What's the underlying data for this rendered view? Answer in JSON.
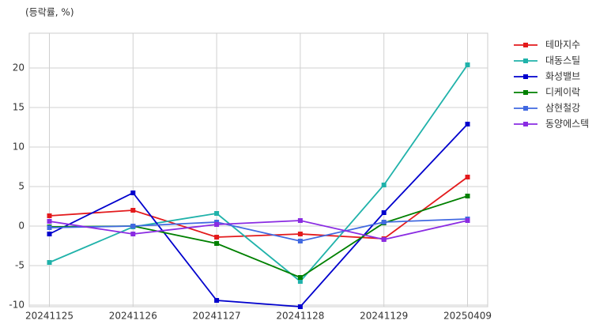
{
  "chart_data": {
    "type": "line",
    "y_label": "(등락률, %)",
    "categories": [
      "20241125",
      "20241126",
      "20241127",
      "20241128",
      "20241129",
      "20250409"
    ],
    "series": [
      {
        "name": "테마지수",
        "color": "#e31a1c",
        "values": [
          1.3,
          2.0,
          -1.4,
          -1.0,
          -1.6,
          6.2
        ]
      },
      {
        "name": "대동스틸",
        "color": "#20b2aa",
        "values": [
          -4.6,
          -0.1,
          1.6,
          -7.0,
          5.2,
          20.4
        ]
      },
      {
        "name": "화성밸브",
        "color": "#0000cd",
        "values": [
          -1.0,
          4.2,
          -9.4,
          -10.2,
          1.7,
          12.9
        ]
      },
      {
        "name": "디케이락",
        "color": "#008000",
        "values": [
          -0.1,
          0.0,
          -2.2,
          -6.5,
          0.4,
          3.8
        ]
      },
      {
        "name": "삼현철강",
        "color": "#4169e1",
        "values": [
          -0.2,
          0.0,
          0.5,
          -1.9,
          0.5,
          0.9
        ]
      },
      {
        "name": "동양에스텍",
        "color": "#8a2be2",
        "values": [
          0.6,
          -1.0,
          0.2,
          0.7,
          -1.7,
          0.7
        ]
      }
    ],
    "ylim": [
      -10.2,
      24.4
    ],
    "yticks": [
      -10,
      -5,
      0,
      5,
      10,
      15,
      20
    ],
    "grid": true,
    "legend": "outside-right"
  }
}
